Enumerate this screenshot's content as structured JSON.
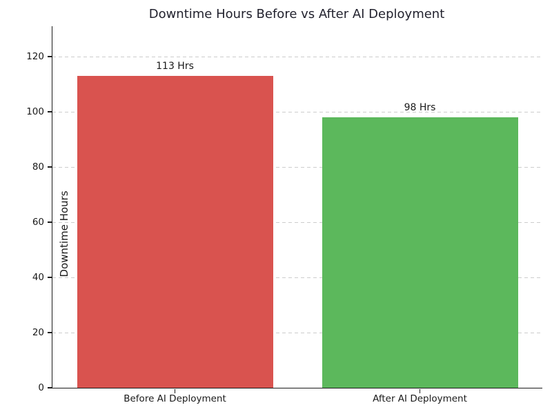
{
  "chart_data": {
    "type": "bar",
    "title": "Downtime Hours Before vs After AI Deployment",
    "xlabel": "",
    "ylabel": "Downtime Hours",
    "categories": [
      "Before AI Deployment",
      "After AI Deployment"
    ],
    "values": [
      113,
      98
    ],
    "value_labels": [
      "113 Hrs",
      "98 Hrs"
    ],
    "bar_colors": [
      "#d9534f",
      "#5cb85c"
    ],
    "yticks": [
      0,
      20,
      40,
      60,
      80,
      100,
      120
    ],
    "ylim": [
      0,
      131
    ],
    "grid": "horizontal-dashed",
    "grid_color": "#cccccc",
    "legend": "none",
    "title_color": "#22222e",
    "bar_width_fraction": 0.8
  }
}
